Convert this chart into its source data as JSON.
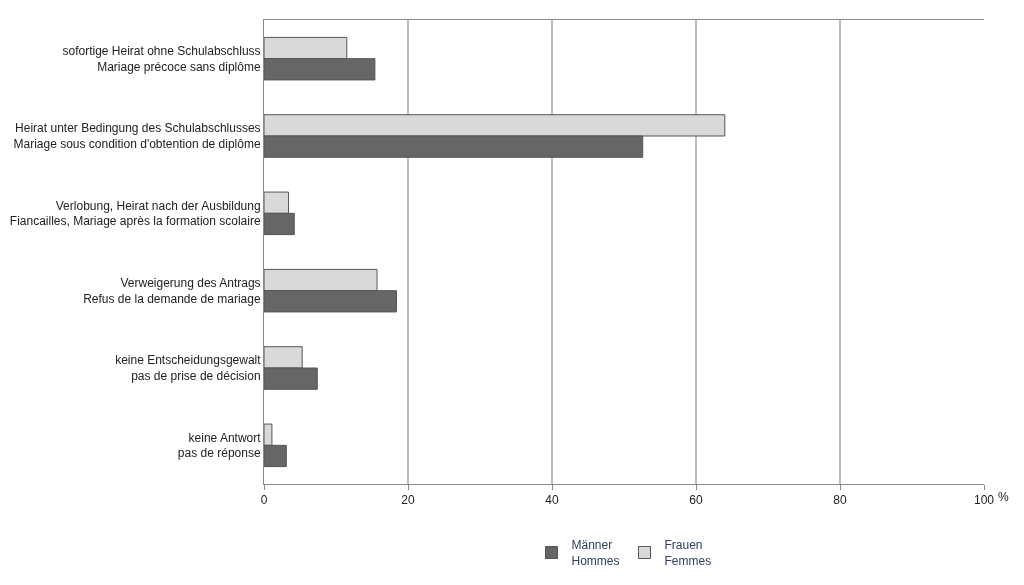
{
  "chart_data": {
    "type": "bar",
    "orientation": "horizontal",
    "xlabel": "%",
    "categories": [
      "sofortige Heirat ohne Schulabschluss\nMariage précoce sans diplôme",
      "Heirat unter Bedingung des Schulabschlusses\nMariage sous condition d'obtention de diplôme",
      "Verlobung, Heirat nach der Ausbildung\nFiancailles, Mariage après la formation scolaire",
      "Verweigerung des Antrags\nRefus de la demande de mariage",
      "keine Entscheidungsgewalt\npas de prise de décision",
      "keine Antwort\npas de réponse"
    ],
    "series": [
      {
        "name": "Frauen\nFemmes",
        "color": "#d9d9d9",
        "values": [
          11.5,
          64.0,
          3.4,
          15.7,
          5.3,
          1.1
        ]
      },
      {
        "name": "Männer\nHommes",
        "color": "#666666",
        "values": [
          15.4,
          52.6,
          4.2,
          18.4,
          7.4,
          3.1
        ]
      }
    ],
    "xlim": [
      0,
      100
    ],
    "xticks": [
      0,
      20,
      40,
      60,
      80,
      100
    ],
    "grid": "x",
    "legend": "bottom"
  }
}
